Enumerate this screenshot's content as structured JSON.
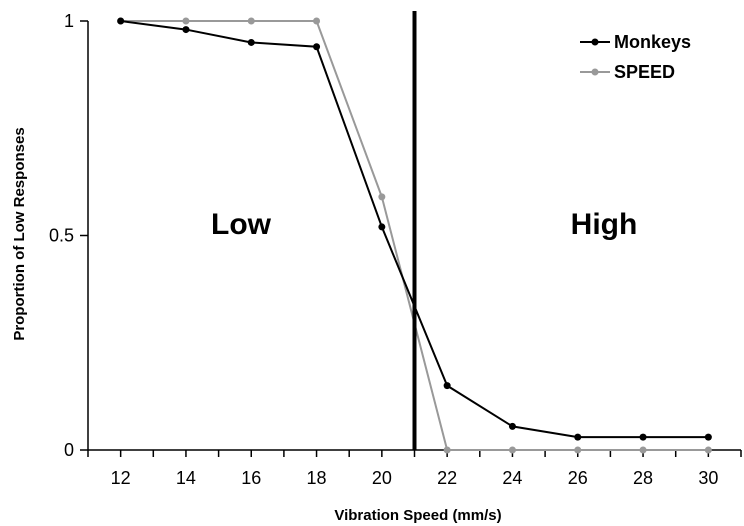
{
  "chart_data": {
    "type": "line",
    "xlabel": "Vibration Speed (mm/s)",
    "ylabel": "Proportion of Low Responses",
    "xlim": [
      11,
      31
    ],
    "ylim": [
      0,
      1
    ],
    "x_ticks": [
      "12",
      "14",
      "16",
      "18",
      "20",
      "22",
      "24",
      "26",
      "28",
      "30"
    ],
    "y_ticks": [
      "0",
      "0.5",
      "1"
    ],
    "x": [
      12,
      14,
      16,
      18,
      20,
      22,
      24,
      26,
      28,
      30
    ],
    "series": [
      {
        "name": "Monkeys",
        "color": "#000000",
        "values": [
          1.0,
          0.98,
          0.95,
          0.94,
          0.52,
          0.15,
          0.055,
          0.03,
          0.03,
          0.03
        ]
      },
      {
        "name": "SPEED",
        "color": "#999999",
        "values": [
          1.0,
          1.0,
          1.0,
          1.0,
          0.59,
          0.0,
          0.0,
          0.0,
          0.0,
          0.0
        ]
      }
    ],
    "boundary_x": 21,
    "region_labels": [
      "Low",
      "High"
    ],
    "legend_position": "top-right",
    "grid": false
  }
}
